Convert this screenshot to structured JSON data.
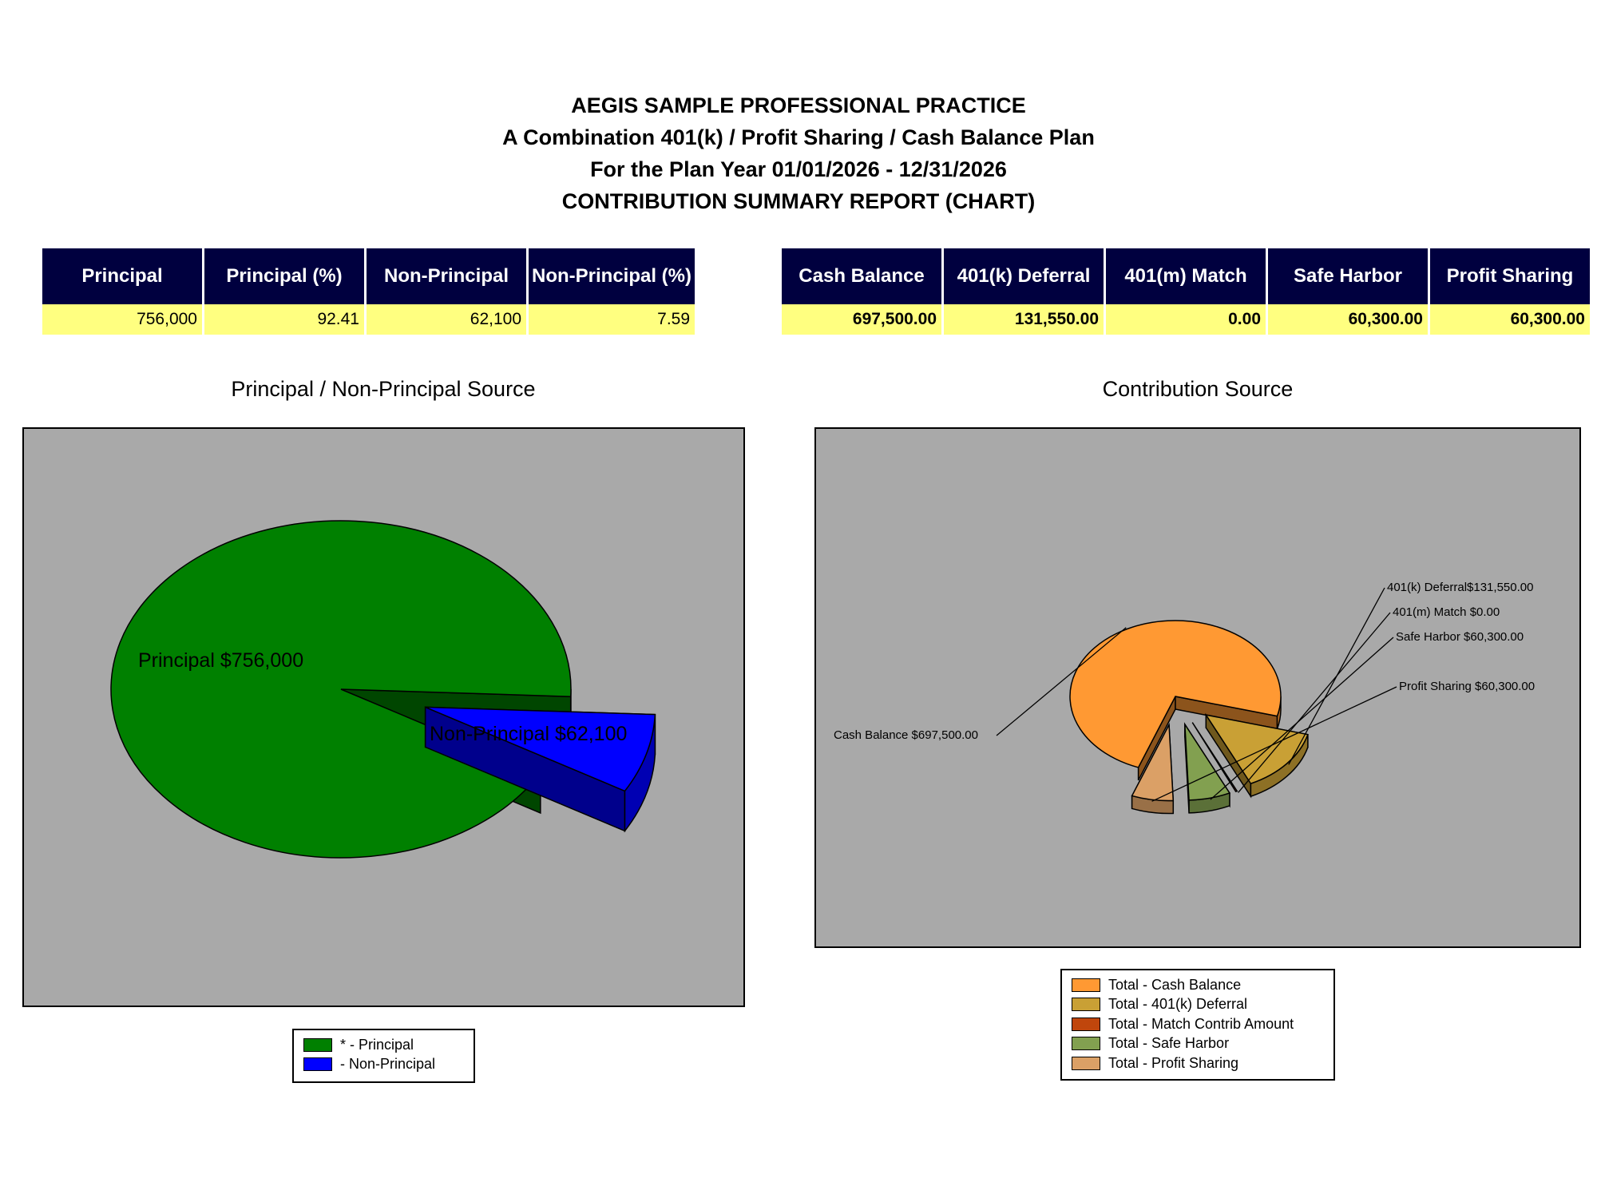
{
  "report": {
    "line1": "AEGIS SAMPLE PROFESSIONAL PRACTICE",
    "line2": "A Combination 401(k) / Profit Sharing / Cash Balance Plan",
    "line3": "For the Plan Year 01/01/2026 - 12/31/2026",
    "line4": "CONTRIBUTION SUMMARY REPORT (CHART)"
  },
  "left_table": {
    "headers": [
      "Principal",
      "Principal (%)",
      "Non-Principal",
      "Non-Principal (%)"
    ],
    "values": [
      "756,000",
      "92.41",
      "62,100",
      "7.59"
    ]
  },
  "right_table": {
    "headers": [
      "Cash Balance",
      "401(k) Deferral",
      "401(m) Match",
      "Safe Harbor",
      "Profit Sharing"
    ],
    "values": [
      "697,500.00",
      "131,550.00",
      "0.00",
      "60,300.00",
      "60,300.00"
    ]
  },
  "chart_data": [
    {
      "type": "pie",
      "title": "Principal / Non-Principal Source",
      "slices": [
        {
          "name": "* - Principal",
          "value": 756000,
          "label": "Principal $756,000",
          "color": "#008000"
        },
        {
          "name": " - Non-Principal",
          "value": 62100,
          "label": "Non-Principal $62,100",
          "color": "#0000ff"
        }
      ],
      "legend_position": "bottom",
      "background": "#a9a9a9"
    },
    {
      "type": "pie",
      "title": "Contribution Source",
      "slices": [
        {
          "name": "Total - Cash Balance",
          "value": 697500.0,
          "label": "Cash Balance $697,500.00",
          "color": "#ff9933"
        },
        {
          "name": "Total - 401(k) Deferral",
          "value": 131550.0,
          "label": "401(k) Deferral$131,550.00",
          "color": "#c9a035"
        },
        {
          "name": "Total - Match Contrib Amount",
          "value": 0.0,
          "label": "401(m) Match $0.00",
          "color": "#c0460c"
        },
        {
          "name": "Total - Safe Harbor",
          "value": 60300.0,
          "label": "Safe Harbor $60,300.00",
          "color": "#82a050"
        },
        {
          "name": "Total - Profit Sharing",
          "value": 60300.0,
          "label": "Profit Sharing $60,300.00",
          "color": "#dba066"
        }
      ],
      "legend_position": "bottom",
      "background": "#a9a9a9"
    }
  ]
}
